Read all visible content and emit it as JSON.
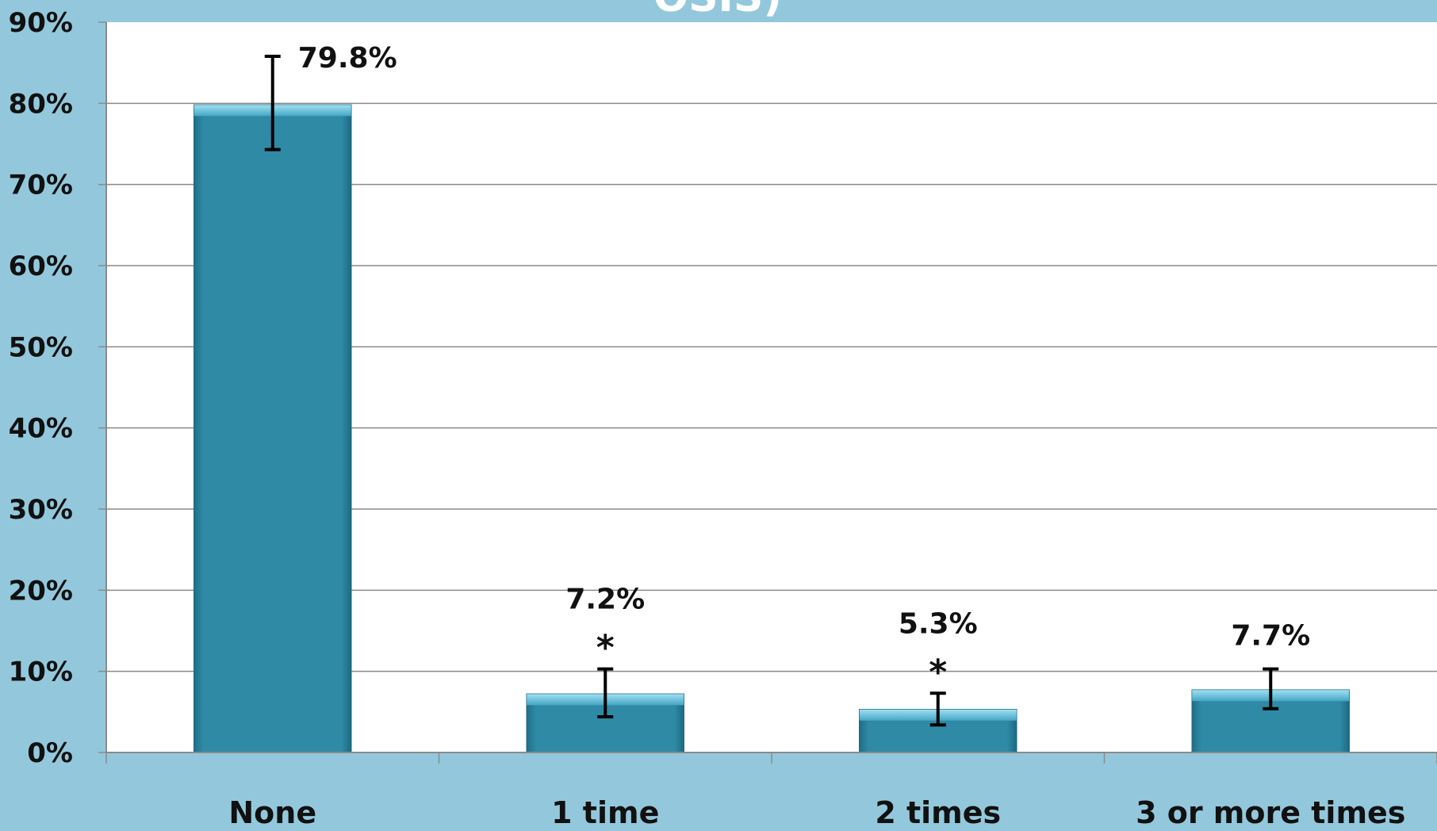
{
  "title_fragment": "OSIS)",
  "colors": {
    "background": "#93c8dc",
    "plot_area": "#ffffff",
    "bar_fill": "#2f8aa6",
    "bar_highlight": "#7fd0e8",
    "bar_edge": "#1f6a82",
    "gridline": "#8a8a8a",
    "error_bar": "#000000"
  },
  "chart_data": {
    "type": "bar",
    "title": "",
    "xlabel": "",
    "ylabel": "",
    "ylim": [
      0,
      90
    ],
    "ytick_step": 10,
    "ytick_labels": [
      "0%",
      "10%",
      "20%",
      "30%",
      "40%",
      "50%",
      "60%",
      "70%",
      "80%",
      "90%"
    ],
    "grid": true,
    "legend": "none",
    "categories": [
      "None",
      "1 time",
      "2 times",
      "3 or more times"
    ],
    "values": [
      79.8,
      7.2,
      5.3,
      7.7
    ],
    "data_labels": [
      "79.8%",
      "7.2%",
      "5.3%",
      "7.7%"
    ],
    "error_bars": [
      {
        "low": 74.3,
        "high": 85.8
      },
      {
        "low": 4.4,
        "high": 10.3
      },
      {
        "low": 3.4,
        "high": 7.3
      },
      {
        "low": 5.4,
        "high": 10.3
      }
    ],
    "significance_markers": [
      "",
      "*",
      "*",
      ""
    ]
  }
}
